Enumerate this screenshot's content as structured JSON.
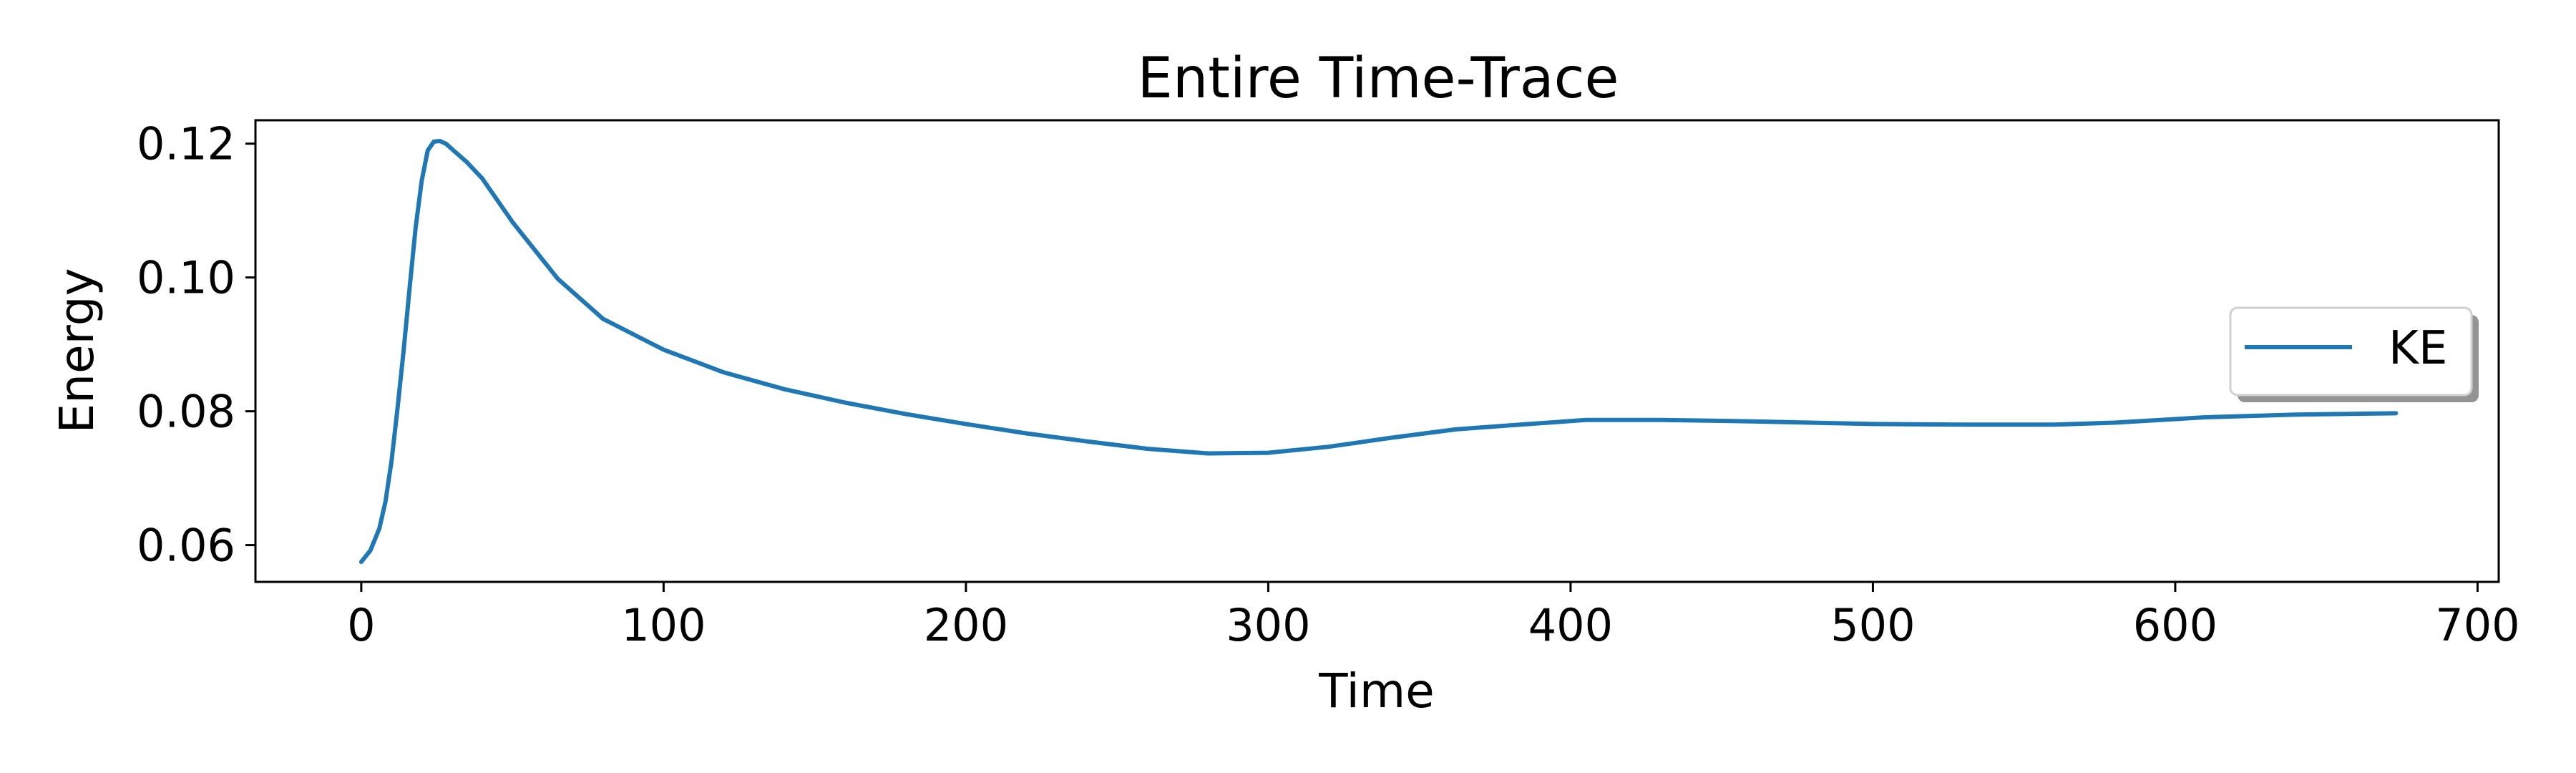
{
  "chart_data": {
    "type": "line",
    "title": "Entire Time-Trace",
    "xlabel": "Time",
    "ylabel": "Energy",
    "xlim": [
      -35,
      707
    ],
    "ylim": [
      0.0545,
      0.1235
    ],
    "xticks": [
      0,
      100,
      200,
      300,
      400,
      500,
      600,
      700
    ],
    "yticks": [
      0.06,
      0.08,
      0.1,
      0.12
    ],
    "xtick_labels": [
      "0",
      "100",
      "200",
      "300",
      "400",
      "500",
      "600",
      "700"
    ],
    "ytick_labels": [
      "0.06",
      "0.08",
      "0.10",
      "0.12"
    ],
    "grid": false,
    "legend_position": "center-right",
    "series": [
      {
        "name": "KE",
        "color": "#1f77b4",
        "x": [
          0,
          3,
          6,
          8,
          10,
          12,
          14,
          16,
          18,
          20,
          22,
          24,
          26,
          28,
          30,
          35,
          40,
          50,
          65,
          80,
          100,
          120,
          140,
          160,
          180,
          200,
          220,
          240,
          260,
          280,
          300,
          320,
          340,
          362,
          380,
          405,
          430,
          460,
          500,
          530,
          560,
          580,
          610,
          640,
          673
        ],
        "values": [
          0.0575,
          0.0592,
          0.0625,
          0.0665,
          0.0725,
          0.0805,
          0.089,
          0.0985,
          0.1075,
          0.1145,
          0.119,
          0.1203,
          0.1204,
          0.12,
          0.1192,
          0.1172,
          0.1148,
          0.1083,
          0.0998,
          0.0938,
          0.0892,
          0.0858,
          0.0833,
          0.0813,
          0.0796,
          0.0781,
          0.0767,
          0.0755,
          0.0744,
          0.0737,
          0.0738,
          0.0747,
          0.076,
          0.0773,
          0.0779,
          0.0787,
          0.0787,
          0.0785,
          0.0781,
          0.078,
          0.078,
          0.0783,
          0.0791,
          0.0795,
          0.0797
        ]
      }
    ]
  }
}
